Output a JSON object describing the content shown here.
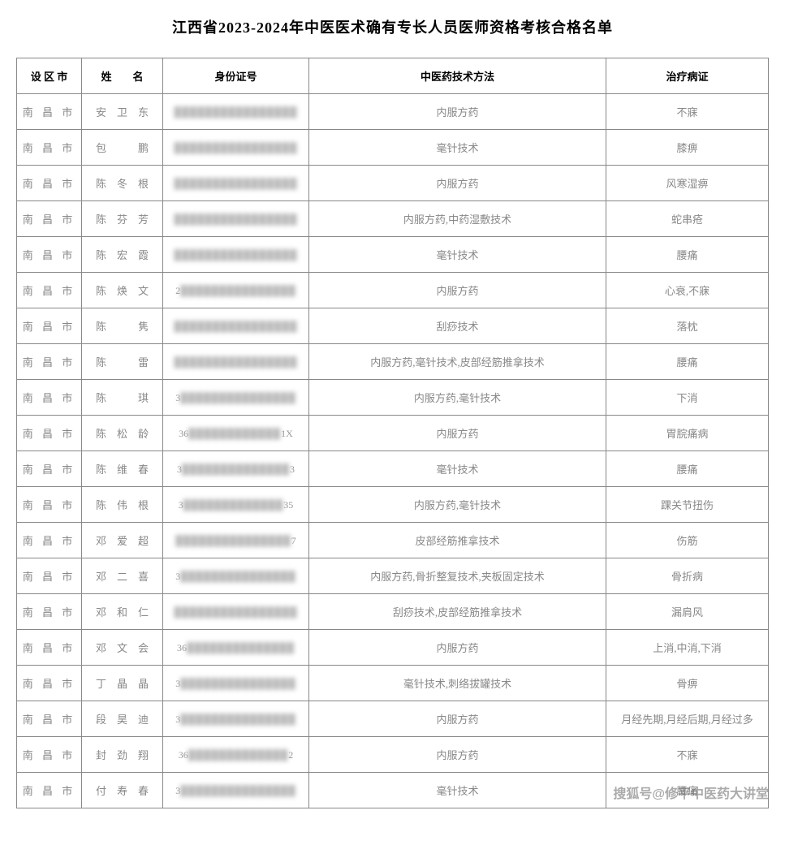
{
  "title": "江西省2023-2024年中医医术确有专长人员医师资格考核合格名单",
  "headers": {
    "city": "设 区 市",
    "name": "姓　　名",
    "id": "身份证号",
    "method": "中医药技术方法",
    "disease": "治疗病证"
  },
  "rows": [
    {
      "city": "南 昌 市",
      "name": "安　卫　东",
      "id_prefix": "",
      "id_blur": "████████████████",
      "method": "内服方药",
      "disease": "不寐"
    },
    {
      "city": "南 昌 市",
      "name": "包　　　鹏",
      "id_prefix": "",
      "id_blur": "████████████████",
      "method": "毫针技术",
      "disease": "膝痹"
    },
    {
      "city": "南 昌 市",
      "name": "陈　冬　根",
      "id_prefix": "",
      "id_blur": "████████████████",
      "method": "内服方药",
      "disease": "风寒湿痹"
    },
    {
      "city": "南 昌 市",
      "name": "陈　芬　芳",
      "id_prefix": "",
      "id_blur": "████████████████",
      "method": "内服方药,中药湿敷技术",
      "disease": "蛇串疮"
    },
    {
      "city": "南 昌 市",
      "name": "陈　宏　霞",
      "id_prefix": "",
      "id_blur": "████████████████",
      "method": "毫针技术",
      "disease": "腰痛"
    },
    {
      "city": "南 昌 市",
      "name": "陈　焕　文",
      "id_prefix": "2",
      "id_blur": "███████████████",
      "method": "内服方药",
      "disease": "心衰,不寐"
    },
    {
      "city": "南 昌 市",
      "name": "陈　　　隽",
      "id_prefix": "",
      "id_blur": "████████████████",
      "method": "刮痧技术",
      "disease": "落枕"
    },
    {
      "city": "南 昌 市",
      "name": "陈　　　雷",
      "id_prefix": "",
      "id_blur": "████████████████",
      "method": "内服方药,毫针技术,皮部经筋推拿技术",
      "disease": "腰痛"
    },
    {
      "city": "南 昌 市",
      "name": "陈　　　琪",
      "id_prefix": "3",
      "id_blur": "███████████████",
      "method": "内服方药,毫针技术",
      "disease": "下消"
    },
    {
      "city": "南 昌 市",
      "name": "陈　松　龄",
      "id_prefix": "36",
      "id_suffix": "1X",
      "id_blur": "████████████",
      "method": "内服方药",
      "disease": "胃脘痛病"
    },
    {
      "city": "南 昌 市",
      "name": "陈　维　春",
      "id_prefix": "3",
      "id_suffix": "3",
      "id_blur": "██████████████",
      "method": "毫针技术",
      "disease": "腰痛"
    },
    {
      "city": "南 昌 市",
      "name": "陈　伟　根",
      "id_prefix": "3",
      "id_suffix": "35",
      "id_blur": "█████████████",
      "method": "内服方药,毫针技术",
      "disease": "踝关节扭伤"
    },
    {
      "city": "南 昌 市",
      "name": "邓　爱　超",
      "id_prefix": "",
      "id_suffix": "7",
      "id_blur": "███████████████",
      "method": "皮部经筋推拿技术",
      "disease": "伤筋"
    },
    {
      "city": "南 昌 市",
      "name": "邓　二　喜",
      "id_prefix": "3",
      "id_blur": "███████████████",
      "method": "内服方药,骨折整复技术,夹板固定技术",
      "disease": "骨折病"
    },
    {
      "city": "南 昌 市",
      "name": "邓　和　仁",
      "id_prefix": "",
      "id_blur": "████████████████",
      "method": "刮痧技术,皮部经筋推拿技术",
      "disease": "漏肩风"
    },
    {
      "city": "南 昌 市",
      "name": "邓　文　会",
      "id_prefix": "36",
      "id_blur": "██████████████",
      "method": "内服方药",
      "disease": "上消,中消,下消"
    },
    {
      "city": "南 昌 市",
      "name": "丁　晶　晶",
      "id_prefix": "3",
      "id_blur": "███████████████",
      "method": "毫针技术,刺络拔罐技术",
      "disease": "骨痹"
    },
    {
      "city": "南 昌 市",
      "name": "段　昊　迪",
      "id_prefix": "3",
      "id_blur": "███████████████",
      "method": "内服方药",
      "disease": "月经先期,月经后期,月经过多"
    },
    {
      "city": "南 昌 市",
      "name": "封　劲　翔",
      "id_prefix": "36",
      "id_suffix": "2",
      "id_blur": "█████████████",
      "method": "内服方药",
      "disease": "不寐"
    },
    {
      "city": "南 昌 市",
      "name": "付　寿　春",
      "id_prefix": "3",
      "id_blur": "███████████████",
      "method": "毫针技术",
      "disease": "腰痛"
    }
  ],
  "watermark": "搜狐号@修平中医药大讲堂"
}
